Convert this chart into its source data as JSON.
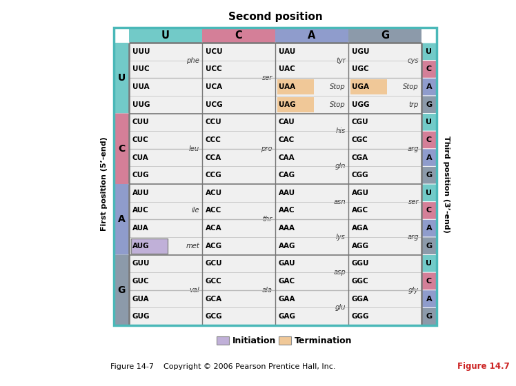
{
  "second_pos_title": "Second position",
  "first_pos_label": "First position (5’-end)",
  "third_pos_label": "Third position (3’-end)",
  "bases": [
    "U",
    "C",
    "A",
    "G"
  ],
  "codons_grid": [
    [
      [
        "UUU",
        "UUC",
        "UUA",
        "UUG"
      ],
      [
        "UCU",
        "UCC",
        "UCA",
        "UCG"
      ],
      [
        "UAU",
        "UAC",
        "UAA",
        "UAG"
      ],
      [
        "UGU",
        "UGC",
        "UGA",
        "UGG"
      ]
    ],
    [
      [
        "CUU",
        "CUC",
        "CUA",
        "CUG"
      ],
      [
        "CCU",
        "CCC",
        "CCA",
        "CCG"
      ],
      [
        "CAU",
        "CAC",
        "CAA",
        "CAG"
      ],
      [
        "CGU",
        "CGC",
        "CGA",
        "CGG"
      ]
    ],
    [
      [
        "AUU",
        "AUC",
        "AUA",
        "AUG"
      ],
      [
        "ACU",
        "ACC",
        "ACA",
        "ACG"
      ],
      [
        "AAU",
        "AAC",
        "AAA",
        "AAG"
      ],
      [
        "AGU",
        "AGC",
        "AGA",
        "AGG"
      ]
    ],
    [
      [
        "GUU",
        "GUC",
        "GUA",
        "GUG"
      ],
      [
        "GCU",
        "GCC",
        "GCA",
        "GCG"
      ],
      [
        "GAU",
        "GAC",
        "GAA",
        "GAG"
      ],
      [
        "GGU",
        "GGC",
        "GGA",
        "GGG"
      ]
    ]
  ],
  "aa_grid": [
    [
      [
        "phe",
        "phe",
        "",
        ""
      ],
      [
        "ser",
        "ser",
        "ser",
        "ser"
      ],
      [
        "tyr",
        "tyr",
        "Stop",
        "Stop"
      ],
      [
        "cys",
        "cys",
        "Stop",
        "trp"
      ]
    ],
    [
      [
        "leu",
        "leu",
        "leu",
        "leu"
      ],
      [
        "pro",
        "pro",
        "pro",
        "pro"
      ],
      [
        "his",
        "his",
        "gln",
        "gln"
      ],
      [
        "arg",
        "arg",
        "arg",
        "arg"
      ]
    ],
    [
      [
        "ile",
        "ile",
        "ile",
        "met"
      ],
      [
        "thr",
        "thr",
        "thr",
        "thr"
      ],
      [
        "asn",
        "asn",
        "lys",
        "lys"
      ],
      [
        "ser",
        "ser",
        "arg",
        "arg"
      ]
    ],
    [
      [
        "val",
        "val",
        "val",
        "val"
      ],
      [
        "ala",
        "ala",
        "ala",
        "ala"
      ],
      [
        "asp",
        "asp",
        "glu",
        "glu"
      ],
      [
        "gly",
        "gly",
        "gly",
        "gly"
      ]
    ]
  ],
  "highlight_initiation": [
    "AUG"
  ],
  "highlight_termination": [
    "UAA",
    "UAG",
    "UGA"
  ],
  "color_U": "#72cac8",
  "color_C": "#d47f98",
  "color_A": "#8f9ccc",
  "color_G": "#8c9aaa",
  "color_cell_light": "#f0f0f0",
  "color_cell_dark": "#e4e4e4",
  "color_init": "#c0b0d8",
  "color_term": "#f0c898",
  "color_line_major": "#5aabab",
  "color_line_inner": "#bbbbbb",
  "figure_caption": "Figure 14-7    Copyright © 2006 Pearson Prentice Hall, Inc.",
  "figure_label": "Figure 14.7",
  "base_text_colors": {
    "U": "#000000",
    "C": "#000000",
    "A": "#000000",
    "G": "#000000"
  }
}
